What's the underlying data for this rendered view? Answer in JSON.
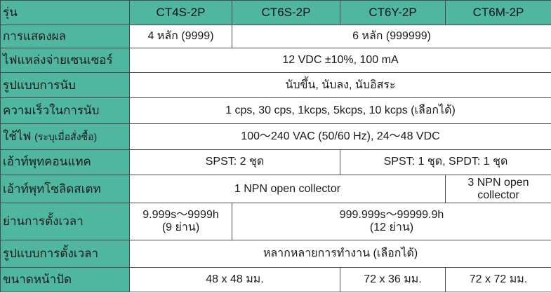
{
  "header": {
    "label": "รุ่น",
    "models": [
      "CT4S-2P",
      "CT6S-2P",
      "CT6Y-2P",
      "CT6M-2P"
    ]
  },
  "rows": {
    "display": {
      "label": "การแสดงผล",
      "ct4s": "4 หลัก (9999)",
      "others": "6 หลัก (999999)"
    },
    "sensor_power": {
      "label": "ไฟแหล่งจ่ายเซนเซอร์",
      "value": "12 VDC ±10%, 100 mA"
    },
    "count_mode": {
      "label": "รูปแบบการนับ",
      "value": "นับขึ้น, นับลง, นับอิสระ"
    },
    "count_speed": {
      "label": "ความเร็วในการนับ",
      "value": "1 cps, 30 cps, 1kcps, 5kcps, 10 kcps (เลือกได้)"
    },
    "power_supply": {
      "label": "ใช้ไฟ",
      "label_note": "(ระบุเมื่อสั่งซื้อ)",
      "value": "100～240 VAC (50/60 Hz), 24～48 VDC"
    },
    "contact_output": {
      "label": "เอ้าท์พุทคอนแทค",
      "left": "SPST: 2 ชุด",
      "right": "SPST: 1 ชุด, SPDT: 1 ชุด"
    },
    "solid_state_output": {
      "label": "เอ้าท์พุทโซลิดสเตท",
      "left": "1 NPN open collector",
      "right_line1": "3 NPN open",
      "right_line2": "collector"
    },
    "timer_range": {
      "label": "ย่านการตั้งเวลา",
      "left_line1": "9.999s～9999h",
      "left_line2": "(9 ย่าน)",
      "right_line1": "999.999s～99999.9h",
      "right_line2": "(12 ย่าน)"
    },
    "timer_mode": {
      "label": "รูปแบบการตั้งเวลา",
      "value": "หลากหลายการทำงาน (เลือกได้)"
    },
    "panel_cutout": {
      "label": "ขนาดหน้าปัด",
      "ct4s_ct6s": "48 x 48 มม.",
      "ct6y": "72 x 36 มม.",
      "ct6m": "72 x 72 มม."
    }
  }
}
